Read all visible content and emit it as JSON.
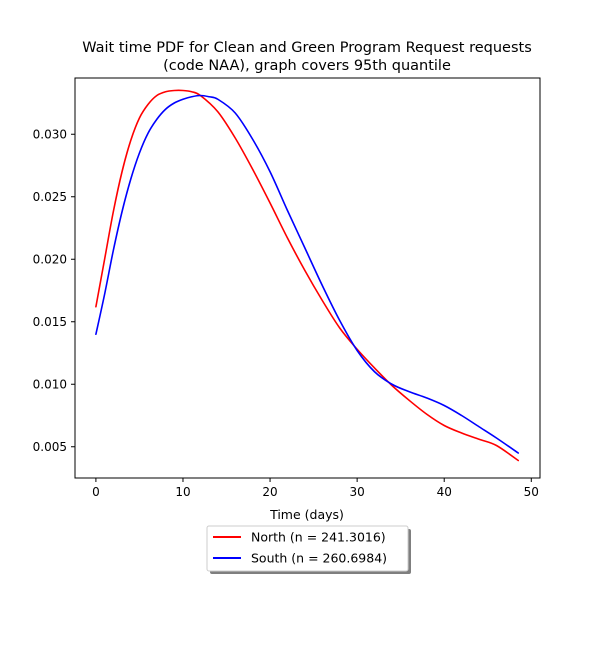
{
  "chart_data": {
    "type": "line",
    "title_line1": "Wait time PDF for Clean and Green Program Request  requests",
    "title_line2": "(code NAA), graph covers 95th quantile",
    "xlabel": "Time (days)",
    "ylabel": "",
    "xlim": [
      -2.4,
      51.0
    ],
    "ylim": [
      0.0025,
      0.0345
    ],
    "xticks": [
      0,
      10,
      20,
      30,
      40,
      50
    ],
    "yticks": [
      0.005,
      0.01,
      0.015,
      0.02,
      0.025,
      0.03
    ],
    "ytick_labels": [
      "0.005",
      "0.010",
      "0.015",
      "0.020",
      "0.025",
      "0.030"
    ],
    "grid": false,
    "legend_placement": "below-center",
    "series": [
      {
        "name": "North (n = 241.3016)",
        "color": "#ff0000",
        "x": [
          0,
          1,
          2,
          3,
          4,
          5,
          6,
          7,
          8,
          9,
          10,
          11,
          12,
          14,
          16,
          18,
          20,
          22,
          24,
          26,
          28,
          30,
          32,
          34,
          36,
          38,
          40,
          42,
          44,
          46,
          48.5
        ],
        "y": [
          0.0162,
          0.02,
          0.0238,
          0.027,
          0.0295,
          0.0313,
          0.0324,
          0.0331,
          0.0334,
          0.0335,
          0.0335,
          0.0334,
          0.0331,
          0.0318,
          0.0297,
          0.0272,
          0.0245,
          0.0217,
          0.0191,
          0.0167,
          0.0145,
          0.0128,
          0.0113,
          0.0099,
          0.0087,
          0.0076,
          0.0067,
          0.0061,
          0.0056,
          0.0051,
          0.0039
        ]
      },
      {
        "name": "South (n = 260.6984)",
        "color": "#0000ff",
        "x": [
          0,
          1,
          2,
          3,
          4,
          5,
          6,
          7,
          8,
          9,
          10,
          11,
          12,
          13,
          14,
          16,
          18,
          20,
          22,
          24,
          26,
          28,
          30,
          32,
          34,
          36,
          38,
          40,
          42,
          44,
          46,
          48.5
        ],
        "y": [
          0.014,
          0.0172,
          0.0207,
          0.0238,
          0.0264,
          0.0285,
          0.0301,
          0.0312,
          0.032,
          0.0325,
          0.0328,
          0.033,
          0.0331,
          0.033,
          0.0328,
          0.0317,
          0.0296,
          0.027,
          0.0239,
          0.0209,
          0.0179,
          0.0151,
          0.0127,
          0.011,
          0.01,
          0.0094,
          0.0089,
          0.0083,
          0.0075,
          0.0066,
          0.0057,
          0.0045
        ]
      }
    ]
  }
}
